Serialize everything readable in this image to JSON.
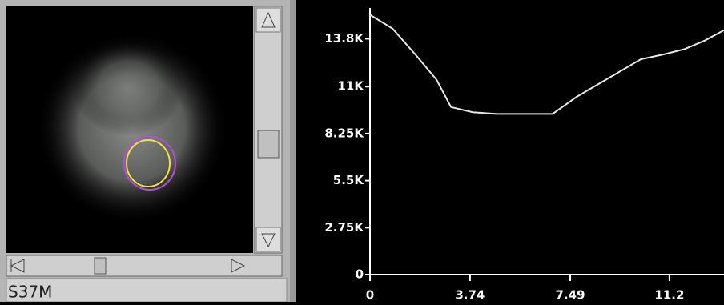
{
  "sidebar": {
    "label": "S37M"
  },
  "chart_data": {
    "type": "line",
    "x": [
      0,
      0.84,
      1.74,
      2.49,
      3.03,
      3.84,
      4.73,
      5.63,
      6.83,
      7.73,
      8.93,
      10.13,
      11.03,
      11.78,
      12.53,
      13.24
    ],
    "series": [
      {
        "color": "#e8e8e8",
        "values": [
          15200,
          14400,
          12800,
          11400,
          9800,
          9500,
          9400,
          9400,
          9400,
          10400,
          11500,
          12600,
          12900,
          13200,
          13700,
          14300
        ]
      }
    ],
    "xlim": [
      0,
      13.24
    ],
    "ylim": [
      0,
      15600
    ],
    "xticks": [
      0,
      3.74,
      7.49,
      11.2
    ],
    "yticks": [
      0,
      {
        "value": 2750,
        "label": "2.75K"
      },
      {
        "value": 5500,
        "label": "5.5K"
      },
      {
        "value": 8250,
        "label": "8.25K"
      },
      {
        "value": 11000,
        "label": "11K"
      },
      {
        "value": 13800,
        "label": "13.8K"
      }
    ]
  }
}
